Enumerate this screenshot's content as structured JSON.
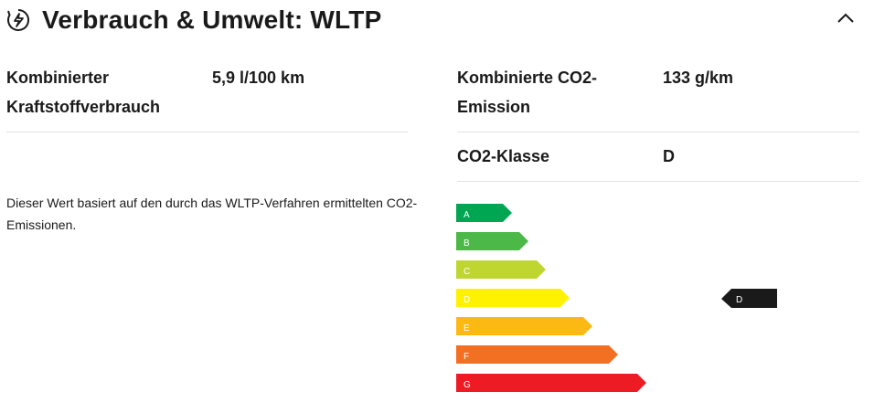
{
  "header": {
    "title": "Verbrauch & Umwelt: WLTP"
  },
  "left": {
    "rows": [
      {
        "label": "Kombinierter Kraftstoffverbrauch",
        "value": "5,9 l/100 km"
      }
    ],
    "note": "Dieser Wert basiert auf den durch das WLTP-Verfahren ermittelten CO2-Emissionen."
  },
  "right": {
    "rows": [
      {
        "label": "Kombinierte CO2-Emission",
        "value": "133 g/km"
      },
      {
        "label": "CO2-Klasse",
        "value": "D"
      }
    ]
  },
  "efficiency": {
    "classes": [
      "A",
      "B",
      "C",
      "D",
      "E",
      "F",
      "G"
    ],
    "indicator": "D"
  }
}
